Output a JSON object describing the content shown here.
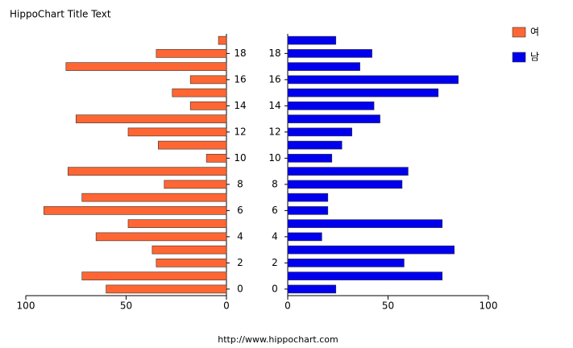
{
  "title": "HippoChart Title Text",
  "footer": "http://www.hippochart.com",
  "chart_data": [
    {
      "type": "bar",
      "orientation": "horizontal",
      "categories": [
        0,
        null,
        2,
        null,
        4,
        null,
        6,
        null,
        8,
        null,
        10,
        null,
        12,
        null,
        14,
        null,
        16,
        null,
        18,
        null
      ],
      "series": [
        {
          "name": "여",
          "color": "#ff6633",
          "values": [
            60,
            72,
            35,
            37,
            65,
            49,
            91,
            72,
            31,
            79,
            10,
            34,
            49,
            75,
            18,
            27,
            18,
            80,
            35,
            4
          ]
        }
      ],
      "xlim": [
        100,
        0
      ],
      "xticks": [
        100,
        50,
        0
      ]
    },
    {
      "type": "bar",
      "orientation": "horizontal",
      "categories": [
        0,
        null,
        2,
        null,
        4,
        null,
        6,
        null,
        8,
        null,
        10,
        null,
        12,
        null,
        14,
        null,
        16,
        null,
        18,
        null
      ],
      "series": [
        {
          "name": "남",
          "color": "#0000ee",
          "values": [
            24,
            77,
            58,
            83,
            17,
            77,
            20,
            20,
            57,
            60,
            22,
            27,
            32,
            46,
            43,
            75,
            85,
            36,
            42,
            24
          ]
        }
      ],
      "xlim": [
        0,
        100
      ],
      "xticks": [
        0,
        50,
        100
      ]
    }
  ]
}
